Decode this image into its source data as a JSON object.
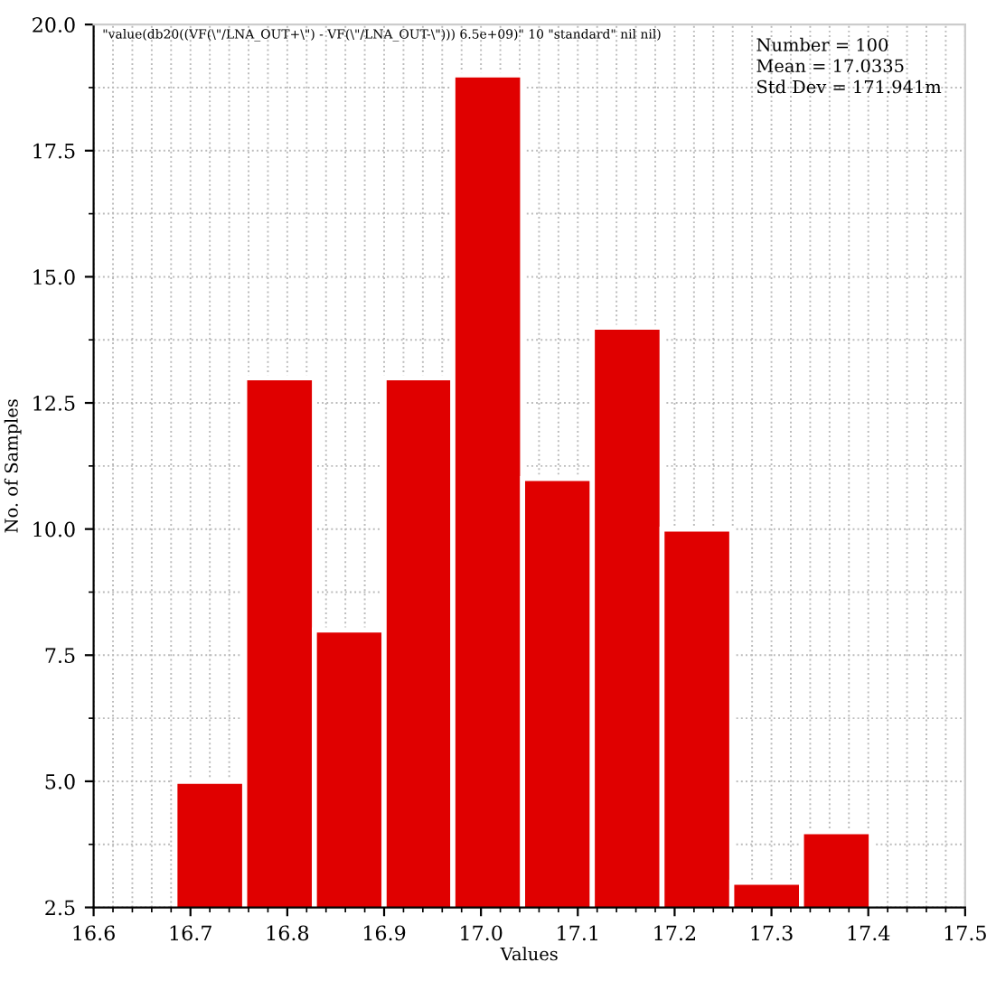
{
  "chart_data": {
    "type": "histogram",
    "title": "\"value(db20((VF(\\\"/LNA_OUT+\\\") - VF(\\\"/LNA_OUT-\\\"))) 6.5e+09)\" 10 \"standard\" nil nil)",
    "xlabel": "Values",
    "ylabel": "No. of Samples",
    "bins": [
      16.684,
      16.756,
      16.828,
      16.9,
      16.971,
      17.043,
      17.115,
      17.187,
      17.259,
      17.331,
      17.403
    ],
    "values": [
      5,
      13,
      8,
      13,
      19,
      11,
      14,
      10,
      3,
      4
    ],
    "color": "#e00000",
    "xlim": [
      16.6,
      17.5
    ],
    "xticks": [
      16.6,
      16.7,
      16.8,
      16.9,
      {
        "value": 17,
        "label": "17.0"
      },
      17.1,
      17.2,
      17.3,
      17.4,
      17.5
    ],
    "ylim": [
      2.5,
      20
    ],
    "yticks": [
      2.5,
      {
        "value": 5,
        "label": "5.0"
      },
      7.5,
      {
        "value": 10,
        "label": "10.0"
      },
      12.5,
      {
        "value": 15,
        "label": "15.0"
      },
      17.5,
      {
        "value": 20,
        "label": "20.0"
      }
    ],
    "grid": true,
    "legend": false,
    "annotations": [
      "Number = 100\nMean = 17.0335\nStd Dev = 171.941m"
    ]
  }
}
